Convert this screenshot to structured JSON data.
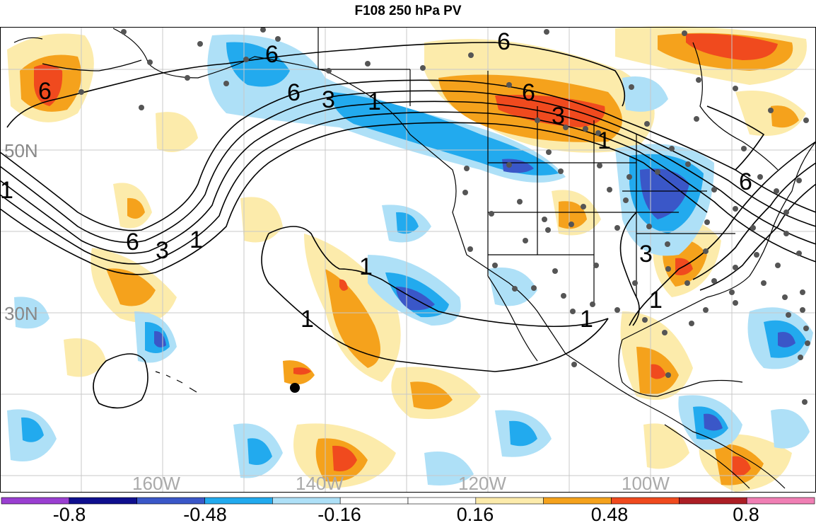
{
  "title": "F108 250 hPa PV",
  "lat_labels": [
    "50N",
    "30N"
  ],
  "lon_labels": [
    "160W",
    "140W",
    "120W",
    "100W"
  ],
  "contour_labels": [
    "6",
    "6",
    "6",
    "3",
    "1",
    "6",
    "3",
    "1",
    "6",
    "3",
    "1",
    "6",
    "1",
    "1",
    "1",
    "1",
    "3",
    "1",
    "6"
  ],
  "colorbar": {
    "ticks": [
      "-0.8",
      "-0.48",
      "-0.16",
      "0.16",
      "0.48",
      "0.8"
    ],
    "colors": [
      "#9a3fd1",
      "#0f0f8e",
      "#3a57c8",
      "#22aaee",
      "#aee0f7",
      "#ffffff",
      "#ffffff",
      "#fcebab",
      "#f5a21c",
      "#f04a1e",
      "#ac1e25",
      "#f07fb4"
    ]
  },
  "colors": {
    "land_outline": "#000000",
    "grid": "#c8c8c8",
    "station_dot": "#555555",
    "contour": "#000000"
  }
}
